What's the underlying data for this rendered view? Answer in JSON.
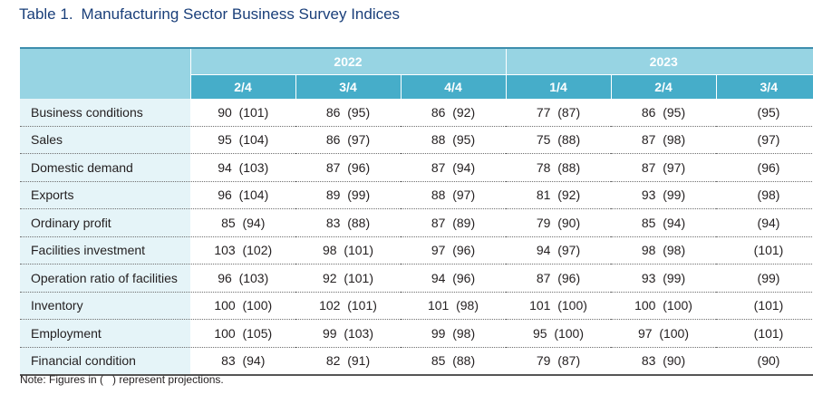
{
  "title": {
    "number": "Table 1.",
    "text": "Manufacturing Sector Business Survey Indices"
  },
  "years": [
    "2022",
    "2023"
  ],
  "quarters": [
    "2/4",
    "3/4",
    "4/4",
    "1/4",
    "2/4",
    "3/4"
  ],
  "rows": [
    {
      "label": "Business conditions",
      "values": [
        "90  (101)",
        "86  (95)",
        "86  (92)",
        "77  (87)",
        "86  (95)",
        "(95)"
      ]
    },
    {
      "label": "Sales",
      "values": [
        "95  (104)",
        "86  (97)",
        "88  (95)",
        "75  (88)",
        "87  (98)",
        "(97)"
      ]
    },
    {
      "label": "Domestic demand",
      "values": [
        "94  (103)",
        "87  (96)",
        "87  (94)",
        "78  (88)",
        "87  (97)",
        "(96)"
      ]
    },
    {
      "label": "Exports",
      "values": [
        "96  (104)",
        "89  (99)",
        "88  (97)",
        "81  (92)",
        "93  (99)",
        "(98)"
      ]
    },
    {
      "label": "Ordinary profit",
      "values": [
        "85  (94)",
        "83  (88)",
        "87  (89)",
        "79  (90)",
        "85  (94)",
        "(94)"
      ]
    },
    {
      "label": "Facilities investment",
      "values": [
        "103  (102)",
        "98  (101)",
        "97  (96)",
        "94  (97)",
        "98  (98)",
        "(101)"
      ]
    },
    {
      "label": "Operation ratio of facilities",
      "values": [
        "96  (103)",
        "92  (101)",
        "94  (96)",
        "87  (96)",
        "93  (99)",
        "(99)"
      ]
    },
    {
      "label": "Inventory",
      "values": [
        "100  (100)",
        "102  (101)",
        "101  (98)",
        "101  (100)",
        "100  (100)",
        "(101)"
      ]
    },
    {
      "label": "Employment",
      "values": [
        "100  (105)",
        "99  (103)",
        "99  (98)",
        "95  (100)",
        "97  (100)",
        "(101)"
      ]
    },
    {
      "label": "Financial condition",
      "values": [
        "83  (94)",
        "82  (91)",
        "85  (88)",
        "79  (87)",
        "83  (90)",
        "(90)"
      ]
    }
  ],
  "note": "Note: Figures in (   ) represent projections.",
  "colors": {
    "title": "#1a3f7a",
    "header_light": "#97d4e3",
    "header_dark": "#46adc9",
    "label_bg": "#e5f4f8"
  }
}
